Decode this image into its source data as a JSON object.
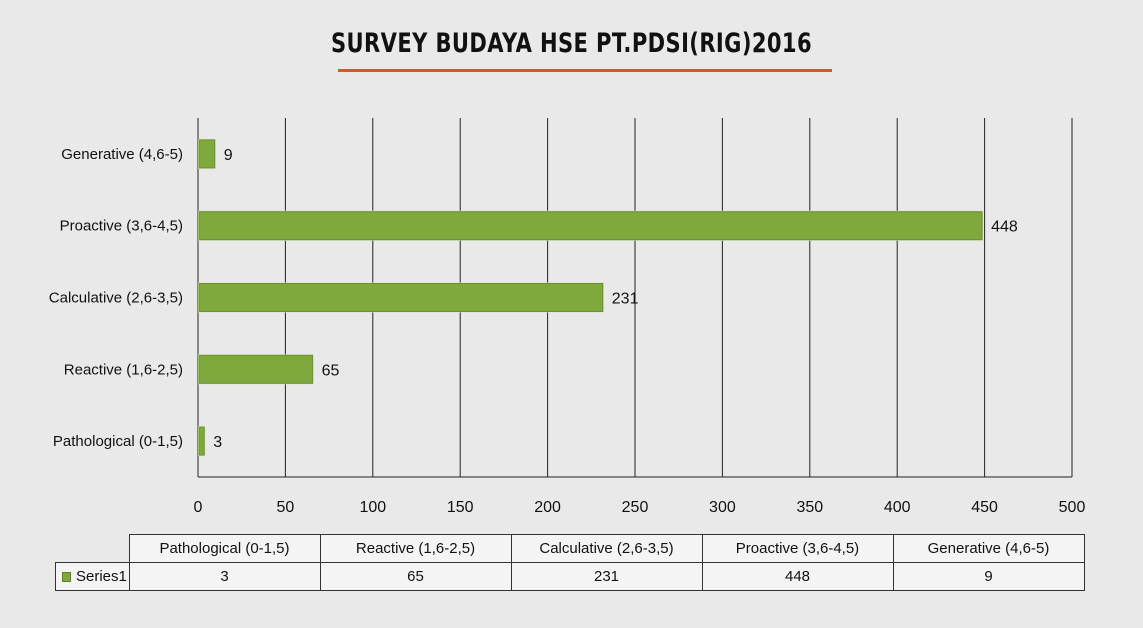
{
  "title": "SURVEY BUDAYA HSE PT.PDSI(RIG)2016",
  "colors": {
    "bar": "#7fa83d",
    "bar_edge": "#d6e8b8",
    "title_rule": "#e1532a"
  },
  "chart_data": {
    "type": "bar",
    "orientation": "horizontal",
    "categories": [
      "Pathological (0-1,5)",
      "Reactive (1,6-2,5)",
      "Calculative (2,6-3,5)",
      "Proactive (3,6-4,5)",
      "Generative (4,6-5)"
    ],
    "series": [
      {
        "name": "Series1",
        "values": [
          3,
          65,
          231,
          448,
          9
        ]
      }
    ],
    "xlim": [
      0,
      500
    ],
    "xticks": [
      0,
      50,
      100,
      150,
      200,
      250,
      300,
      350,
      400,
      450,
      500
    ],
    "grid": true,
    "legend": "data-table-below"
  },
  "table": {
    "headers": [
      "Pathological (0-1,5)",
      "Reactive (1,6-2,5)",
      "Calculative (2,6-3,5)",
      "Proactive (3,6-4,5)",
      "Generative (4,6-5)"
    ],
    "series_label": "Series1",
    "values": [
      "3",
      "65",
      "231",
      "448",
      "9"
    ]
  }
}
